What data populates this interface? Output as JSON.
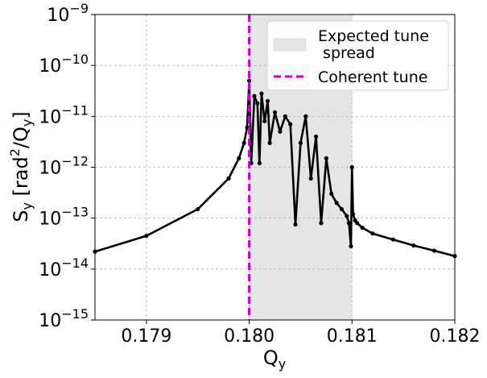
{
  "chart_data": {
    "type": "line",
    "title": "",
    "xlabel": {
      "base": "Q",
      "sub": "y"
    },
    "ylabel": {
      "base": "S",
      "sub": "y",
      "mid": " [rad",
      "sup": "2",
      "slash": "/Q",
      "sub2": "y",
      "end": "]"
    },
    "xlim": [
      0.1785,
      0.182
    ],
    "ylim": [
      1e-15,
      1e-09
    ],
    "yscale": "log",
    "grid": true,
    "legend_position": "top-right",
    "x_ticks": [
      {
        "value": 0.179,
        "label": "0.179"
      },
      {
        "value": 0.18,
        "label": "0.180"
      },
      {
        "value": 0.181,
        "label": "0.181"
      },
      {
        "value": 0.182,
        "label": "0.182"
      }
    ],
    "y_ticks": [
      {
        "value": 1e-15,
        "base": "10",
        "exp": "−15"
      },
      {
        "value": 1e-14,
        "base": "10",
        "exp": "−14"
      },
      {
        "value": 1e-13,
        "base": "10",
        "exp": "−13"
      },
      {
        "value": 1e-12,
        "base": "10",
        "exp": "−12"
      },
      {
        "value": 1e-11,
        "base": "10",
        "exp": "−11"
      },
      {
        "value": 1e-10,
        "base": "10",
        "exp": "−10"
      },
      {
        "value": 1e-09,
        "base": "10",
        "exp": "−9"
      }
    ],
    "shaded_region": {
      "name": "Expected tune spread",
      "legend_line1": "Expected tune",
      "legend_line2": " spread",
      "x_range": [
        0.18,
        0.181
      ],
      "color": "#e5e5e5"
    },
    "vertical_line": {
      "name": "Coherent tune",
      "x": 0.18,
      "color": "#cc00cc"
    },
    "series": [
      {
        "color": "#000000",
        "x": [
          0.1785,
          0.179,
          0.1795,
          0.1798,
          0.1799,
          0.17995,
          0.17998,
          0.18,
          0.18002,
          0.18005,
          0.18008,
          0.1801,
          0.18012,
          0.18015,
          0.18018,
          0.1802,
          0.18025,
          0.1803,
          0.18035,
          0.1804,
          0.18045,
          0.1805,
          0.18055,
          0.1806,
          0.18065,
          0.1807,
          0.18075,
          0.1808,
          0.18085,
          0.1809,
          0.18095,
          0.18097,
          0.18099,
          0.181,
          0.18101,
          0.18103,
          0.18105,
          0.1811,
          0.1812,
          0.1814,
          0.1816,
          0.1818,
          0.182
        ],
        "y": [
          2.2e-14,
          4.5e-14,
          1.5e-13,
          6e-13,
          1.5e-12,
          3e-12,
          6e-12,
          5e-11,
          1.2e-12,
          2.5e-11,
          1.8e-11,
          1.2e-12,
          2.8e-11,
          8e-12,
          2e-11,
          3e-12,
          1.2e-11,
          5e-12,
          1e-11,
          7e-12,
          7.5e-14,
          3e-12,
          1e-11,
          6e-13,
          4e-12,
          8e-14,
          1.5e-12,
          3e-13,
          2e-13,
          1.5e-13,
          1.1e-13,
          8e-14,
          2.8e-14,
          1e-12,
          1.2e-13,
          9e-14,
          8e-14,
          6.5e-14,
          5e-14,
          3.8e-14,
          2.9e-14,
          2.3e-14,
          1.8e-14
        ]
      }
    ]
  }
}
